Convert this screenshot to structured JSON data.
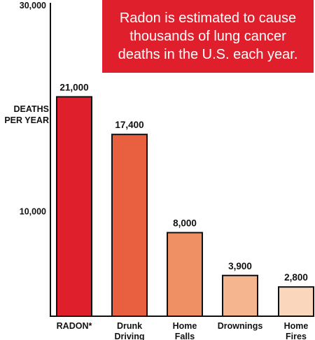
{
  "callout": {
    "text": "Radon is estimated to cause thousands of lung cancer deaths in the U.S. each year."
  },
  "chart_data": {
    "type": "bar",
    "title": "",
    "ylabel": "DEATHS PER YEAR",
    "xlabel": "",
    "ylim": [
      0,
      30000
    ],
    "yticks": [
      {
        "value": 30000,
        "label": "30,000"
      },
      {
        "value": 10000,
        "label": "10,000"
      }
    ],
    "grid": false,
    "categories": [
      "RADON*",
      "Drunk Driving",
      "Home Falls",
      "Drownings",
      "Home Fires"
    ],
    "values": [
      21000,
      17400,
      8000,
      3900,
      2800
    ],
    "value_labels": [
      "21,000",
      "17,400",
      "8,000",
      "3,900",
      "2,800"
    ],
    "bar_colors": [
      "#e01f2c",
      "#e8603f",
      "#ef8f64",
      "#f5b58f",
      "#fad6bd"
    ]
  }
}
